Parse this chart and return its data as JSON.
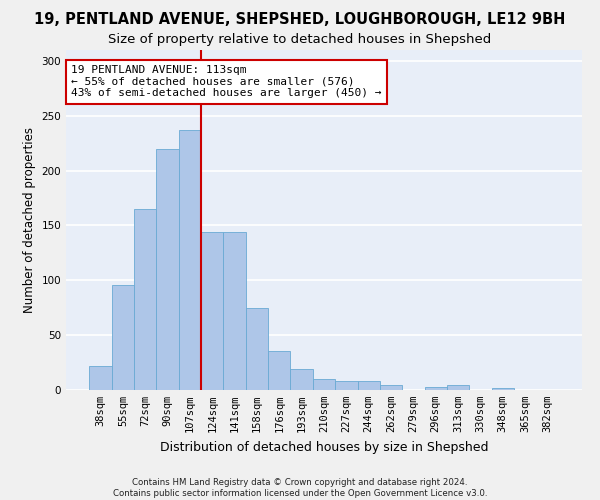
{
  "title1": "19, PENTLAND AVENUE, SHEPSHED, LOUGHBOROUGH, LE12 9BH",
  "title2": "Size of property relative to detached houses in Shepshed",
  "xlabel": "Distribution of detached houses by size in Shepshed",
  "ylabel": "Number of detached properties",
  "footnote": "Contains HM Land Registry data © Crown copyright and database right 2024.\nContains public sector information licensed under the Open Government Licence v3.0.",
  "bar_labels": [
    "38sqm",
    "55sqm",
    "72sqm",
    "90sqm",
    "107sqm",
    "124sqm",
    "141sqm",
    "158sqm",
    "176sqm",
    "193sqm",
    "210sqm",
    "227sqm",
    "244sqm",
    "262sqm",
    "279sqm",
    "296sqm",
    "313sqm",
    "330sqm",
    "348sqm",
    "365sqm",
    "382sqm"
  ],
  "bar_heights": [
    22,
    96,
    165,
    220,
    237,
    144,
    144,
    75,
    36,
    19,
    10,
    8,
    8,
    5,
    0,
    3,
    5,
    0,
    2,
    0,
    0
  ],
  "bar_color": "#aec6e8",
  "bar_edge_color": "#6aaad4",
  "vline_x": 4.5,
  "vline_color": "#cc0000",
  "annotation_text": "19 PENTLAND AVENUE: 113sqm\n← 55% of detached houses are smaller (576)\n43% of semi-detached houses are larger (450) →",
  "annotation_box_color": "#ffffff",
  "annotation_box_edge": "#cc0000",
  "ylim": [
    0,
    310
  ],
  "yticks": [
    0,
    50,
    100,
    150,
    200,
    250,
    300
  ],
  "background_color": "#e8eef8",
  "grid_color": "#ffffff",
  "title1_fontsize": 10.5,
  "title2_fontsize": 9.5,
  "xlabel_fontsize": 9,
  "ylabel_fontsize": 8.5,
  "annotation_fontsize": 8,
  "tick_fontsize": 7.5
}
